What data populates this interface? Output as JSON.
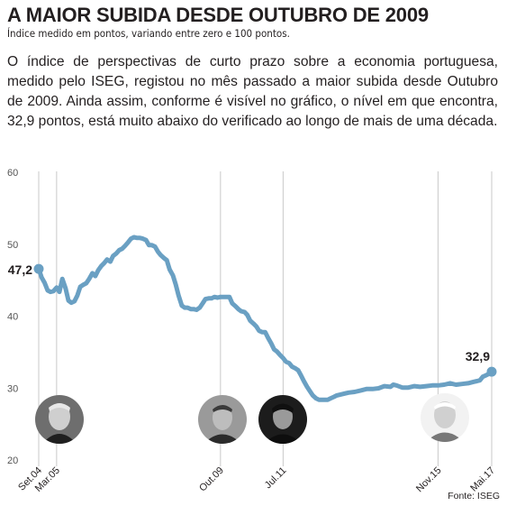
{
  "header": {
    "title": "A MAIOR SUBIDA DESDE OUTUBRO DE 2009",
    "subtitle": "Índice medido em pontos, variando entre zero e 100 pontos."
  },
  "body_text": "O índice de perspectivas de curto prazo sobre a economia portuguesa, medido pelo ISEG, registou no mês passado a maior subida desde Outubro de 2009. Ainda assim, conforme é visível no gráfico, o nível em que encontra, 32,9 pontos, está muito abaixo do verificado ao longo de mais de uma década.",
  "source": "Fonte: ISEG",
  "colors": {
    "line": "#6aa0c3",
    "grid": "#c9c9c9",
    "axis_text": "#555555",
    "text": "#231f20"
  },
  "chart_data": {
    "type": "line",
    "title": "A MAIOR SUBIDA DESDE OUTUBRO DE 2009",
    "ylim": [
      20,
      60
    ],
    "yticks": [
      20,
      30,
      40,
      50,
      60
    ],
    "xlim": [
      2004.67,
      2017.33
    ],
    "grid": "vertical lines at labelled dates",
    "xtick_labels": [
      {
        "label": "Set.04",
        "x": 2004.67
      },
      {
        "label": "Mar.05",
        "x": 2005.17
      },
      {
        "label": "Out.09",
        "x": 2009.75
      },
      {
        "label": "Jul.11",
        "x": 2011.5
      },
      {
        "label": "Nov.15",
        "x": 2015.83
      },
      {
        "label": "Mai.17",
        "x": 2017.33
      }
    ],
    "annotations": [
      {
        "text": "47,2",
        "x": 2004.67,
        "y": 47.2
      },
      {
        "text": "32,9",
        "x": 2017.33,
        "y": 32.9
      }
    ],
    "series": [
      {
        "points": [
          [
            2004.67,
            47.2
          ],
          [
            2004.75,
            46.0
          ],
          [
            2004.83,
            45.3
          ],
          [
            2004.92,
            44.2
          ],
          [
            2005.0,
            44.0
          ],
          [
            2005.08,
            44.1
          ],
          [
            2005.17,
            44.6
          ],
          [
            2005.25,
            44.0
          ],
          [
            2005.33,
            45.8
          ],
          [
            2005.42,
            44.5
          ],
          [
            2005.5,
            42.8
          ],
          [
            2005.58,
            42.5
          ],
          [
            2005.67,
            42.7
          ],
          [
            2005.75,
            43.5
          ],
          [
            2005.83,
            44.7
          ],
          [
            2005.92,
            45.0
          ],
          [
            2006.0,
            45.2
          ],
          [
            2006.08,
            45.8
          ],
          [
            2006.17,
            46.6
          ],
          [
            2006.25,
            46.2
          ],
          [
            2006.33,
            47.0
          ],
          [
            2006.42,
            47.6
          ],
          [
            2006.5,
            48.0
          ],
          [
            2006.58,
            48.5
          ],
          [
            2006.67,
            48.2
          ],
          [
            2006.75,
            49.0
          ],
          [
            2006.83,
            49.3
          ],
          [
            2006.92,
            49.8
          ],
          [
            2007.0,
            50.0
          ],
          [
            2007.08,
            50.4
          ],
          [
            2007.17,
            50.9
          ],
          [
            2007.25,
            51.4
          ],
          [
            2007.33,
            51.6
          ],
          [
            2007.42,
            51.5
          ],
          [
            2007.5,
            51.5
          ],
          [
            2007.58,
            51.4
          ],
          [
            2007.67,
            51.2
          ],
          [
            2007.75,
            50.5
          ],
          [
            2007.83,
            50.5
          ],
          [
            2007.92,
            50.3
          ],
          [
            2008.0,
            49.6
          ],
          [
            2008.08,
            49.1
          ],
          [
            2008.17,
            48.7
          ],
          [
            2008.25,
            48.4
          ],
          [
            2008.33,
            47.1
          ],
          [
            2008.42,
            46.3
          ],
          [
            2008.5,
            45.0
          ],
          [
            2008.58,
            43.5
          ],
          [
            2008.67,
            42.1
          ],
          [
            2008.75,
            41.8
          ],
          [
            2008.83,
            41.8
          ],
          [
            2008.92,
            41.6
          ],
          [
            2009.0,
            41.6
          ],
          [
            2009.08,
            41.5
          ],
          [
            2009.17,
            41.8
          ],
          [
            2009.25,
            42.4
          ],
          [
            2009.33,
            43.0
          ],
          [
            2009.42,
            43.1
          ],
          [
            2009.5,
            43.1
          ],
          [
            2009.58,
            43.3
          ],
          [
            2009.67,
            43.2
          ],
          [
            2009.75,
            43.3
          ],
          [
            2009.83,
            43.3
          ],
          [
            2009.92,
            43.3
          ],
          [
            2010.0,
            43.3
          ],
          [
            2010.08,
            42.4
          ],
          [
            2010.17,
            42.0
          ],
          [
            2010.25,
            41.6
          ],
          [
            2010.33,
            41.3
          ],
          [
            2010.42,
            41.2
          ],
          [
            2010.5,
            40.8
          ],
          [
            2010.58,
            40.0
          ],
          [
            2010.67,
            39.6
          ],
          [
            2010.75,
            39.2
          ],
          [
            2010.83,
            38.6
          ],
          [
            2010.92,
            38.4
          ],
          [
            2011.0,
            38.4
          ],
          [
            2011.08,
            37.6
          ],
          [
            2011.17,
            36.8
          ],
          [
            2011.25,
            36.0
          ],
          [
            2011.33,
            35.7
          ],
          [
            2011.42,
            35.2
          ],
          [
            2011.5,
            34.8
          ],
          [
            2011.58,
            34.3
          ],
          [
            2011.67,
            34.1
          ],
          [
            2011.75,
            33.6
          ],
          [
            2011.83,
            33.4
          ],
          [
            2011.92,
            33.1
          ],
          [
            2012.0,
            32.4
          ],
          [
            2012.08,
            31.6
          ],
          [
            2012.17,
            30.8
          ],
          [
            2012.25,
            30.2
          ],
          [
            2012.33,
            29.6
          ],
          [
            2012.42,
            29.2
          ],
          [
            2012.5,
            29.0
          ],
          [
            2012.58,
            29.0
          ],
          [
            2012.67,
            29.0
          ],
          [
            2012.75,
            29.0
          ],
          [
            2012.83,
            29.2
          ],
          [
            2012.92,
            29.4
          ],
          [
            2013.0,
            29.6
          ],
          [
            2013.17,
            29.8
          ],
          [
            2013.33,
            30.0
          ],
          [
            2013.5,
            30.1
          ],
          [
            2013.67,
            30.3
          ],
          [
            2013.83,
            30.5
          ],
          [
            2014.0,
            30.5
          ],
          [
            2014.17,
            30.6
          ],
          [
            2014.33,
            30.9
          ],
          [
            2014.5,
            30.8
          ],
          [
            2014.58,
            31.1
          ],
          [
            2014.67,
            31.0
          ],
          [
            2014.83,
            30.7
          ],
          [
            2015.0,
            30.7
          ],
          [
            2015.17,
            30.9
          ],
          [
            2015.33,
            30.8
          ],
          [
            2015.5,
            30.9
          ],
          [
            2015.67,
            31.0
          ],
          [
            2015.83,
            31.0
          ],
          [
            2016.0,
            31.1
          ],
          [
            2016.17,
            31.3
          ],
          [
            2016.33,
            31.1
          ],
          [
            2016.5,
            31.2
          ],
          [
            2016.67,
            31.3
          ],
          [
            2016.83,
            31.5
          ],
          [
            2016.92,
            31.6
          ],
          [
            2017.0,
            31.7
          ],
          [
            2017.08,
            32.2
          ],
          [
            2017.17,
            32.4
          ],
          [
            2017.25,
            32.6
          ],
          [
            2017.33,
            32.9
          ]
        ]
      }
    ]
  }
}
